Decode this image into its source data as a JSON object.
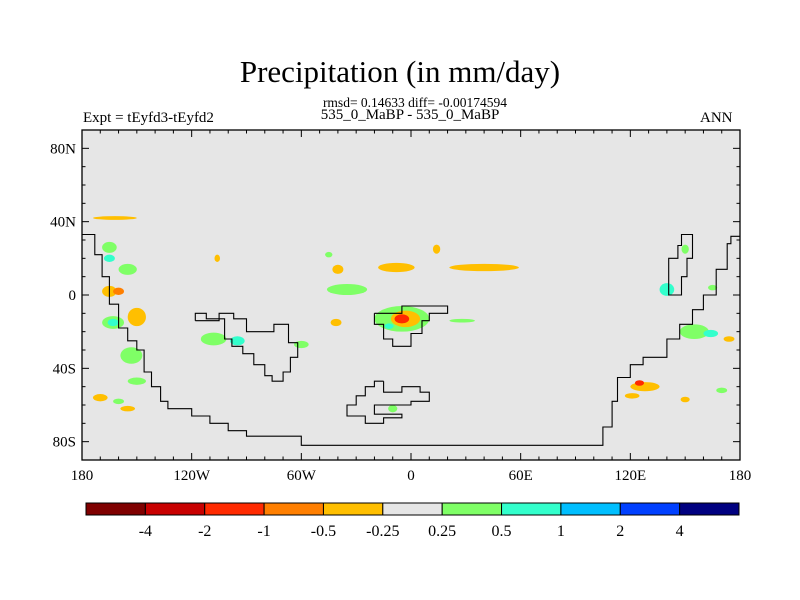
{
  "header": {
    "title": "Precipitation (in mm/day)",
    "stats": "rmsd= 0.14633 diff= -0.00174594",
    "case": "535_0_MaBP - 535_0_MaBP",
    "expt": "Expt = tEyfd3-tEyfd2",
    "season": "ANN"
  },
  "chart_data": {
    "type": "heatmap",
    "title": "Precipitation (in mm/day)",
    "xlabel": "",
    "ylabel": "",
    "xlim": [
      -180,
      180
    ],
    "ylim": [
      -90,
      90
    ],
    "background_color": "#e6e6e6",
    "x_ticks": [
      {
        "value": -180,
        "label": "180"
      },
      {
        "value": -120,
        "label": "120W"
      },
      {
        "value": -60,
        "label": "60W"
      },
      {
        "value": 0,
        "label": "0"
      },
      {
        "value": 60,
        "label": "60E"
      },
      {
        "value": 120,
        "label": "120E"
      },
      {
        "value": 180,
        "label": "180"
      }
    ],
    "y_ticks": [
      {
        "value": 80,
        "label": "80N"
      },
      {
        "value": 40,
        "label": "40N"
      },
      {
        "value": 0,
        "label": "0"
      },
      {
        "value": -40,
        "label": "40S"
      },
      {
        "value": -80,
        "label": "80S"
      }
    ],
    "colorbar": {
      "colors": [
        "#7f0000",
        "#c80000",
        "#ff2a00",
        "#ff7f00",
        "#ffbf00",
        "#e6e6e6",
        "#7fff66",
        "#33ffcc",
        "#00bfff",
        "#0040ff",
        "#000080"
      ],
      "labels": [
        "-4",
        "-2",
        "-1",
        "-0.5",
        "-0.25",
        "0.25",
        "0.5",
        "1",
        "2",
        "4"
      ]
    },
    "anomaly_regions": [
      {
        "lon": -162,
        "lat": 42,
        "w": 24,
        "h": 2,
        "color": "#ffbf00"
      },
      {
        "lon": -165,
        "lat": 26,
        "w": 8,
        "h": 6,
        "color": "#7fff66"
      },
      {
        "lon": -165,
        "lat": 20,
        "w": 6,
        "h": 4,
        "color": "#33ffcc"
      },
      {
        "lon": -155,
        "lat": 14,
        "w": 10,
        "h": 6,
        "color": "#7fff66"
      },
      {
        "lon": -165,
        "lat": 2,
        "w": 8,
        "h": 6,
        "color": "#ffbf00"
      },
      {
        "lon": -160,
        "lat": 2,
        "w": 6,
        "h": 4,
        "color": "#ff7f00"
      },
      {
        "lon": -163,
        "lat": -15,
        "w": 12,
        "h": 7,
        "color": "#7fff66"
      },
      {
        "lon": -163,
        "lat": -15,
        "w": 6,
        "h": 4,
        "color": "#33ffcc"
      },
      {
        "lon": -150,
        "lat": -12,
        "w": 10,
        "h": 10,
        "color": "#ffbf00"
      },
      {
        "lon": -153,
        "lat": -33,
        "w": 12,
        "h": 9,
        "color": "#7fff66"
      },
      {
        "lon": -150,
        "lat": -47,
        "w": 10,
        "h": 4,
        "color": "#7fff66"
      },
      {
        "lon": -170,
        "lat": -56,
        "w": 8,
        "h": 4,
        "color": "#ffbf00"
      },
      {
        "lon": -160,
        "lat": -58,
        "w": 6,
        "h": 3,
        "color": "#7fff66"
      },
      {
        "lon": -155,
        "lat": -62,
        "w": 8,
        "h": 3,
        "color": "#ffbf00"
      },
      {
        "lon": -106,
        "lat": 20,
        "w": 3,
        "h": 4,
        "color": "#ffbf00"
      },
      {
        "lon": -108,
        "lat": -24,
        "w": 14,
        "h": 7,
        "color": "#7fff66"
      },
      {
        "lon": -95,
        "lat": -25,
        "w": 8,
        "h": 5,
        "color": "#33ffcc"
      },
      {
        "lon": -60,
        "lat": -27,
        "w": 8,
        "h": 4,
        "color": "#7fff66"
      },
      {
        "lon": -41,
        "lat": -15,
        "w": 6,
        "h": 4,
        "color": "#ffbf00"
      },
      {
        "lon": -35,
        "lat": 3,
        "w": 22,
        "h": 6,
        "color": "#7fff66"
      },
      {
        "lon": -45,
        "lat": 22,
        "w": 4,
        "h": 3,
        "color": "#7fff66"
      },
      {
        "lon": -8,
        "lat": 15,
        "w": 20,
        "h": 5,
        "color": "#ffbf00"
      },
      {
        "lon": 40,
        "lat": 15,
        "w": 38,
        "h": 4,
        "color": "#ffbf00"
      },
      {
        "lon": 14,
        "lat": 25,
        "w": 4,
        "h": 5,
        "color": "#ffbf00"
      },
      {
        "lon": -40,
        "lat": 14,
        "w": 6,
        "h": 5,
        "color": "#ffbf00"
      },
      {
        "lon": -5,
        "lat": -13,
        "w": 30,
        "h": 14,
        "color": "#7fff66"
      },
      {
        "lon": -3,
        "lat": -13,
        "w": 16,
        "h": 9,
        "color": "#ffbf00"
      },
      {
        "lon": -5,
        "lat": -13,
        "w": 8,
        "h": 5,
        "color": "#ff2a00"
      },
      {
        "lon": -12,
        "lat": -17,
        "w": 5,
        "h": 3,
        "color": "#33ffcc"
      },
      {
        "lon": 28,
        "lat": -14,
        "w": 14,
        "h": 2,
        "color": "#7fff66"
      },
      {
        "lon": -10,
        "lat": -62,
        "w": 5,
        "h": 4,
        "color": "#7fff66"
      },
      {
        "lon": 140,
        "lat": 3,
        "w": 8,
        "h": 7,
        "color": "#33ffcc"
      },
      {
        "lon": 150,
        "lat": 25,
        "w": 4,
        "h": 5,
        "color": "#7fff66"
      },
      {
        "lon": 155,
        "lat": -20,
        "w": 16,
        "h": 8,
        "color": "#7fff66"
      },
      {
        "lon": 164,
        "lat": -21,
        "w": 8,
        "h": 4,
        "color": "#33ffcc"
      },
      {
        "lon": 174,
        "lat": -24,
        "w": 6,
        "h": 3,
        "color": "#ffbf00"
      },
      {
        "lon": 165,
        "lat": 4,
        "w": 5,
        "h": 3,
        "color": "#7fff66"
      },
      {
        "lon": 128,
        "lat": -50,
        "w": 16,
        "h": 5,
        "color": "#ffbf00"
      },
      {
        "lon": 125,
        "lat": -48,
        "w": 5,
        "h": 3,
        "color": "#ff2a00"
      },
      {
        "lon": 121,
        "lat": -55,
        "w": 8,
        "h": 3,
        "color": "#ffbf00"
      },
      {
        "lon": 150,
        "lat": -57,
        "w": 5,
        "h": 3,
        "color": "#ffbf00"
      },
      {
        "lon": 170,
        "lat": -52,
        "w": 6,
        "h": 3,
        "color": "#7fff66"
      }
    ],
    "coastlines": [
      [
        [
          -180,
          33
        ],
        [
          -173,
          33
        ],
        [
          -173,
          22
        ],
        [
          -169,
          22
        ],
        [
          -169,
          10
        ],
        [
          -165,
          10
        ],
        [
          -165,
          -5
        ],
        [
          -160,
          -5
        ],
        [
          -160,
          -18
        ],
        [
          -155,
          -18
        ],
        [
          -155,
          -25
        ],
        [
          -150,
          -25
        ],
        [
          -150,
          -30
        ],
        [
          -146,
          -30
        ],
        [
          -146,
          -42
        ],
        [
          -142,
          -42
        ],
        [
          -142,
          -50
        ],
        [
          -137,
          -50
        ],
        [
          -137,
          -58
        ],
        [
          -133,
          -58
        ],
        [
          -133,
          -62
        ],
        [
          -120,
          -62
        ],
        [
          -120,
          -66
        ],
        [
          -110,
          -66
        ],
        [
          -110,
          -70
        ],
        [
          -100,
          -70
        ],
        [
          -100,
          -74
        ],
        [
          -90,
          -74
        ],
        [
          -90,
          -77
        ],
        [
          -60,
          -77
        ],
        [
          -60,
          -82
        ],
        [
          105,
          -82
        ],
        [
          105,
          -72
        ],
        [
          110,
          -72
        ],
        [
          110,
          -58
        ],
        [
          113,
          -58
        ],
        [
          113,
          -45
        ],
        [
          120,
          -45
        ],
        [
          120,
          -38
        ],
        [
          127,
          -38
        ],
        [
          127,
          -34
        ],
        [
          140,
          -34
        ],
        [
          140,
          -24
        ],
        [
          147,
          -24
        ],
        [
          147,
          -16
        ],
        [
          154,
          -16
        ],
        [
          154,
          -8
        ],
        [
          160,
          -8
        ],
        [
          160,
          0
        ],
        [
          167,
          0
        ],
        [
          167,
          14
        ],
        [
          173,
          14
        ],
        [
          173,
          28
        ],
        [
          175,
          28
        ],
        [
          175,
          32
        ],
        [
          180,
          32
        ]
      ],
      [
        [
          141,
          5
        ],
        [
          141,
          20
        ],
        [
          146,
          20
        ],
        [
          146,
          27
        ],
        [
          148,
          27
        ],
        [
          148,
          33
        ],
        [
          154,
          33
        ],
        [
          154,
          20
        ],
        [
          151,
          20
        ],
        [
          151,
          10
        ],
        [
          148,
          10
        ],
        [
          148,
          0
        ],
        [
          141,
          0
        ],
        [
          141,
          5
        ]
      ],
      [
        [
          -118,
          -14
        ],
        [
          -118,
          -10
        ],
        [
          -112,
          -10
        ],
        [
          -112,
          -13
        ],
        [
          -102,
          -13
        ],
        [
          -102,
          -24
        ],
        [
          -98,
          -24
        ],
        [
          -98,
          -28
        ],
        [
          -92,
          -28
        ],
        [
          -92,
          -32
        ],
        [
          -86,
          -32
        ],
        [
          -86,
          -38
        ],
        [
          -80,
          -38
        ],
        [
          -80,
          -44
        ],
        [
          -76,
          -44
        ],
        [
          -76,
          -47
        ],
        [
          -70,
          -47
        ],
        [
          -70,
          -42
        ],
        [
          -66,
          -42
        ],
        [
          -66,
          -34
        ],
        [
          -62,
          -34
        ],
        [
          -62,
          -26
        ],
        [
          -67,
          -26
        ],
        [
          -67,
          -16
        ],
        [
          -75,
          -16
        ],
        [
          -75,
          -20
        ],
        [
          -90,
          -20
        ],
        [
          -90,
          -13
        ],
        [
          -97,
          -13
        ],
        [
          -97,
          -10
        ],
        [
          -105,
          -10
        ],
        [
          -105,
          -14
        ],
        [
          -118,
          -14
        ]
      ],
      [
        [
          -20,
          -10
        ],
        [
          -20,
          -16
        ],
        [
          -15,
          -16
        ],
        [
          -15,
          -24
        ],
        [
          -10,
          -24
        ],
        [
          -10,
          -28
        ],
        [
          0,
          -28
        ],
        [
          0,
          -21
        ],
        [
          6,
          -21
        ],
        [
          6,
          -14
        ],
        [
          10,
          -14
        ],
        [
          10,
          -10
        ],
        [
          20,
          -10
        ],
        [
          20,
          -6
        ],
        [
          -5,
          -6
        ],
        [
          -5,
          -10
        ],
        [
          -20,
          -10
        ]
      ],
      [
        [
          -15,
          -47
        ],
        [
          -15,
          -53
        ],
        [
          -5,
          -53
        ],
        [
          -5,
          -50
        ],
        [
          5,
          -50
        ],
        [
          5,
          -53
        ],
        [
          10,
          -53
        ],
        [
          10,
          -58
        ],
        [
          0,
          -58
        ],
        [
          0,
          -60
        ],
        [
          -20,
          -60
        ],
        [
          -20,
          -65
        ],
        [
          -5,
          -65
        ],
        [
          -5,
          -67
        ],
        [
          -15,
          -67
        ],
        [
          -15,
          -70
        ],
        [
          -25,
          -70
        ],
        [
          -25,
          -66
        ],
        [
          -35,
          -66
        ],
        [
          -35,
          -60
        ],
        [
          -30,
          -60
        ],
        [
          -30,
          -55
        ],
        [
          -25,
          -55
        ],
        [
          -25,
          -50
        ],
        [
          -20,
          -50
        ],
        [
          -20,
          -47
        ],
        [
          -15,
          -47
        ]
      ]
    ]
  }
}
